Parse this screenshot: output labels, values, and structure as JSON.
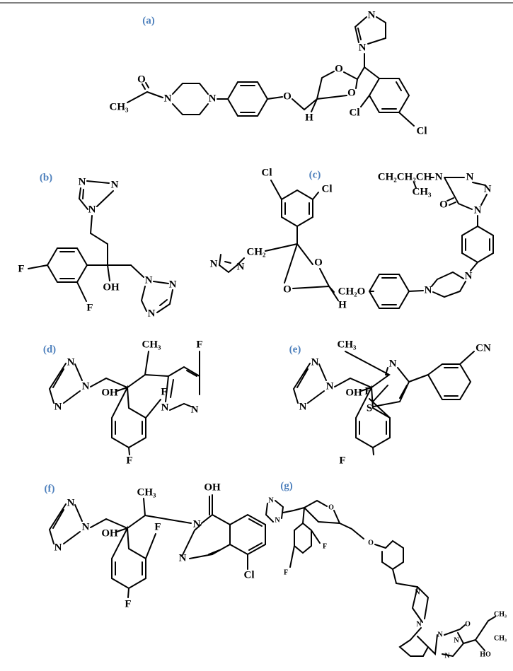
{
  "panels": [
    {
      "label": "(a)",
      "atoms": [
        "N",
        "N",
        "O",
        "O",
        "O",
        "H",
        "Cl",
        "Cl",
        "N",
        "N",
        "O",
        "CH₃"
      ]
    },
    {
      "label": "(b)",
      "atoms": [
        "N",
        "N",
        "N",
        "F",
        "F",
        "OH",
        "N",
        "N",
        "N"
      ]
    },
    {
      "label": "(c)",
      "atoms": [
        "CH₂CH₂CH",
        "N",
        "N",
        "CH₃",
        "O",
        "N",
        "N",
        "Cl",
        "Cl",
        "N",
        "N",
        "CH₂",
        "O",
        "O",
        "H",
        "CH₂O",
        "N",
        "N"
      ]
    },
    {
      "label": "(d)",
      "atoms": [
        "CH₃",
        "F",
        "N",
        "N",
        "N",
        "OH",
        "F",
        "N",
        "N",
        "F"
      ]
    },
    {
      "label": "(e)",
      "atoms": [
        "CH₃",
        "N",
        "CN",
        "N",
        "N",
        "N",
        "OH",
        "F",
        "S",
        "F"
      ]
    },
    {
      "label": "(f)",
      "atoms": [
        "CH₃",
        "OH",
        "N",
        "N",
        "N",
        "OH",
        "F",
        "N",
        "N",
        "Cl",
        "F"
      ]
    },
    {
      "label": "(g)",
      "atoms": [
        "N",
        "N",
        "O",
        "O",
        "F",
        "F",
        "N",
        "N",
        "N",
        "O",
        "N",
        "N",
        "CH₃",
        "CH₃",
        "HO"
      ]
    }
  ]
}
